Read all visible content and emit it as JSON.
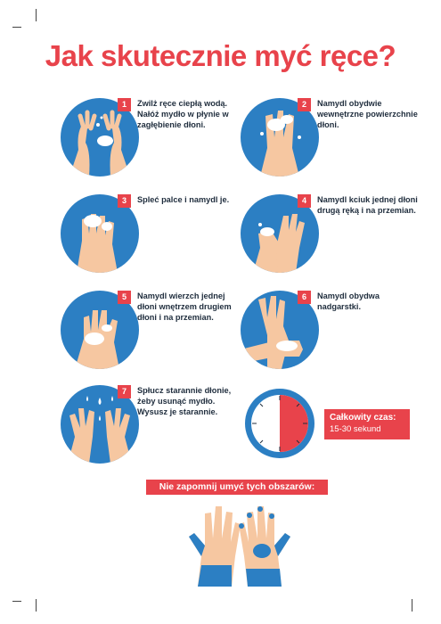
{
  "title": "Jak skutecznie myć ręce?",
  "steps": [
    {
      "number": "1",
      "text": "Zwilż ręce ciepłą wodą. Nałóż mydło w płynie w zagłębienie dłoni."
    },
    {
      "number": "2",
      "text": "Namydl obydwie wewnętrzne powierzchnie dłoni."
    },
    {
      "number": "3",
      "text": "Spleć palce i namydl je."
    },
    {
      "number": "4",
      "text": "Namydl kciuk jednej dłoni drugą ręką i na przemian."
    },
    {
      "number": "5",
      "text": "Namydl wierzch jednej dłoni wnętrzem drugiem dłoni i na przemian."
    },
    {
      "number": "6",
      "text": "Namydl obydwa nadgarstki."
    },
    {
      "number": "7",
      "text": "Spłucz starannie dłonie, żeby usunąć mydło. Wysusz je starannie."
    }
  ],
  "timer": {
    "label": "Całkowity czas:",
    "value": "15-30 sekund"
  },
  "banner": "Nie zapomnij umyć tych obszarów:",
  "colors": {
    "accent_red": "#e8434b",
    "circle_blue": "#2c7fc3",
    "skin": "#f6c7a1",
    "foam": "#ffffff"
  },
  "icons": [
    "hands-wetting-icon",
    "palms-rubbing-icon",
    "interlaced-fingers-icon",
    "thumb-washing-icon",
    "back-of-hand-icon",
    "wrist-washing-icon",
    "rinsing-hands-icon",
    "stopwatch-icon",
    "missed-areas-hands-icon"
  ]
}
